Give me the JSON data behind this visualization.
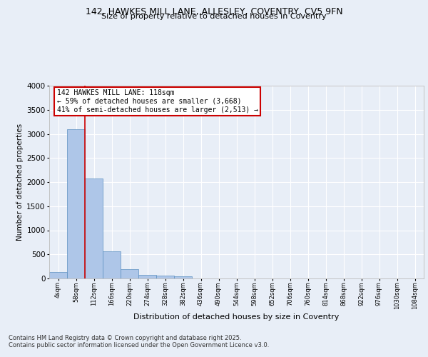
{
  "title_line1": "142, HAWKES MILL LANE, ALLESLEY, COVENTRY, CV5 9FN",
  "title_line2": "Size of property relative to detached houses in Coventry",
  "xlabel": "Distribution of detached houses by size in Coventry",
  "ylabel": "Number of detached properties",
  "footer_line1": "Contains HM Land Registry data © Crown copyright and database right 2025.",
  "footer_line2": "Contains public sector information licensed under the Open Government Licence v3.0.",
  "bin_labels": [
    "4sqm",
    "58sqm",
    "112sqm",
    "166sqm",
    "220sqm",
    "274sqm",
    "328sqm",
    "382sqm",
    "436sqm",
    "490sqm",
    "544sqm",
    "598sqm",
    "652sqm",
    "706sqm",
    "760sqm",
    "814sqm",
    "868sqm",
    "922sqm",
    "976sqm",
    "1030sqm",
    "1084sqm"
  ],
  "bar_values": [
    140,
    3100,
    2080,
    570,
    200,
    80,
    55,
    45,
    0,
    0,
    0,
    0,
    0,
    0,
    0,
    0,
    0,
    0,
    0,
    0,
    0
  ],
  "bar_color": "#aec6e8",
  "bar_edge_color": "#5a8fc0",
  "ylim": [
    0,
    4000
  ],
  "yticks": [
    0,
    500,
    1000,
    1500,
    2000,
    2500,
    3000,
    3500,
    4000
  ],
  "vline_bin_index": 2,
  "annotation_title": "142 HAWKES MILL LANE: 118sqm",
  "annotation_line2": "← 59% of detached houses are smaller (3,668)",
  "annotation_line3": "41% of semi-detached houses are larger (2,513) →",
  "annotation_box_color": "#ffffff",
  "annotation_box_edge": "#cc0000",
  "vline_color": "#cc0000",
  "bg_color": "#e8eef7",
  "plot_bg_color": "#e8eef7",
  "grid_color": "#ffffff",
  "title_fontsize": 9,
  "subtitle_fontsize": 8,
  "ylabel_fontsize": 7.5,
  "xlabel_fontsize": 8,
  "ytick_fontsize": 7.5,
  "xtick_fontsize": 6,
  "footer_fontsize": 6,
  "annot_fontsize": 7
}
